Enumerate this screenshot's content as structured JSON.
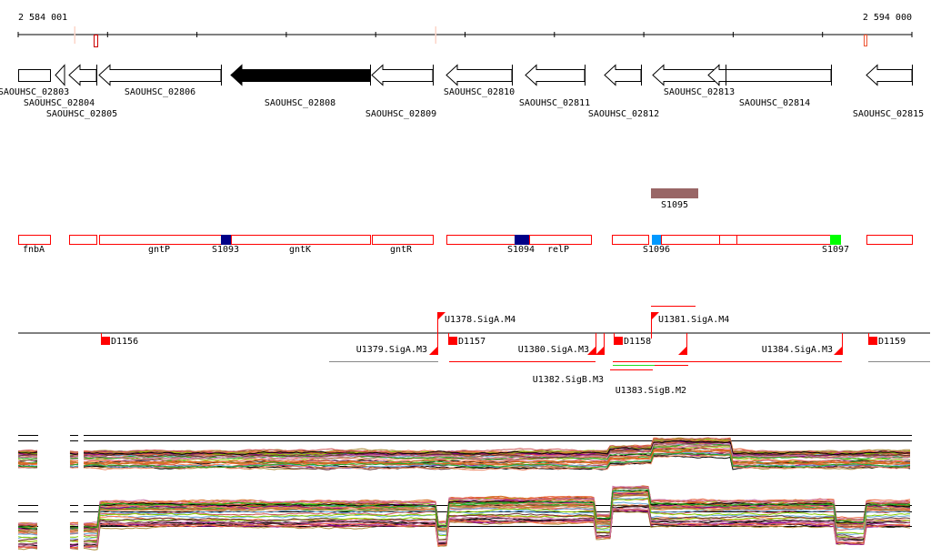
{
  "ruler": {
    "start_label": "2 584 001",
    "end_label": "2 594 000"
  },
  "genes": [
    {
      "label": "SAOUHSC_02803",
      "shape": "box"
    },
    {
      "label": "SAOUHSC_02804",
      "shape": "arrow"
    },
    {
      "label": "SAOUHSC_02805",
      "shape": "arrow"
    },
    {
      "label": "SAOUHSC_02806",
      "shape": "arrow"
    },
    {
      "label": "SAOUHSC_02808",
      "shape": "arrow-selected"
    },
    {
      "label": "SAOUHSC_02809",
      "shape": "arrow"
    },
    {
      "label": "SAOUHSC_02810",
      "shape": "arrow"
    },
    {
      "label": "SAOUHSC_02811",
      "shape": "arrow"
    },
    {
      "label": "SAOUHSC_02812",
      "shape": "arrow"
    },
    {
      "label": "SAOUHSC_02813",
      "shape": "arrow"
    },
    {
      "label": "SAOUHSC_02814",
      "shape": "arrow"
    },
    {
      "label": "SAOUHSC_02815",
      "shape": "arrow"
    }
  ],
  "features": {
    "transcripts": [
      "fnbA",
      "",
      "gntP",
      "gntK",
      "gntR",
      "relP",
      "",
      "",
      "",
      "",
      ""
    ],
    "segments": [
      {
        "label": "S1093",
        "color": "#000088"
      },
      {
        "label": "S1094",
        "color": "#000088"
      },
      {
        "label": "S1095",
        "color": "#996666"
      },
      {
        "label": "S1096",
        "color": "#0099ff"
      },
      {
        "label": "S1097",
        "color": "#00ff00"
      }
    ]
  },
  "regulation": {
    "terminators": [
      "D1156",
      "D1157",
      "D1158",
      "D1159"
    ],
    "promoters": [
      "U1378.SigA.M4",
      "U1379.SigA.M3",
      "U1380.SigA.M3",
      "U1382.SigB.M3",
      "U1383.SigB.M2",
      "U1381.SigA.M4",
      "U1384.SigA.M3"
    ]
  },
  "expression": {
    "palette": [
      "#e8643c",
      "#d2691e",
      "#8b008b",
      "#66aadd",
      "#88cc00",
      "#aa8833",
      "#cc5555",
      "#663333",
      "#ee8866",
      "#000000",
      "#cc77aa",
      "#22aa22",
      "#996644",
      "#ff7744"
    ]
  }
}
